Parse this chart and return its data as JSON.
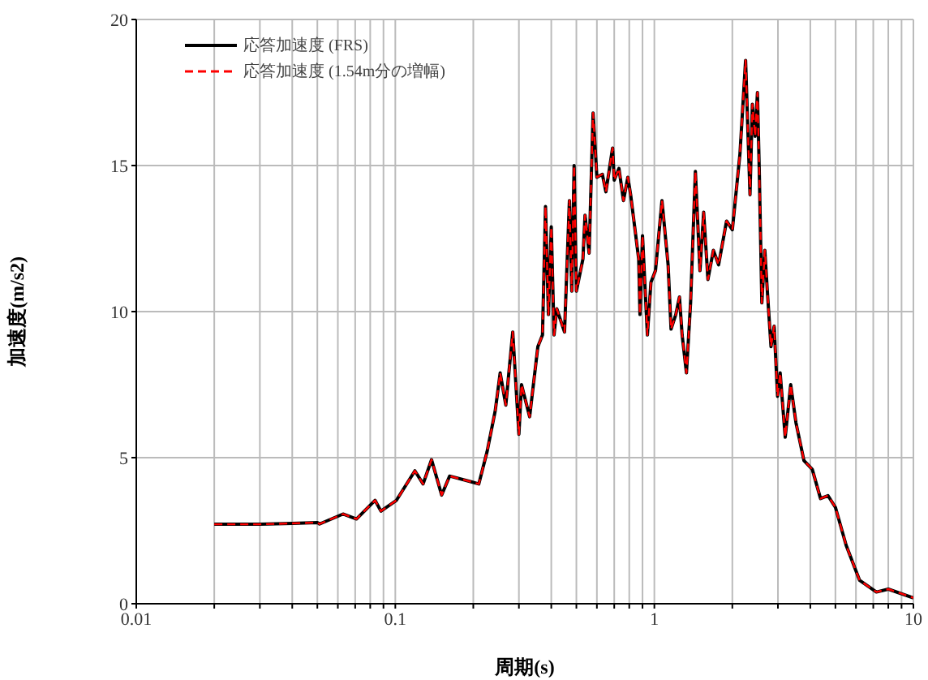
{
  "chart_data": {
    "type": "line",
    "xlabel": "周期(s)",
    "ylabel": "加速度(m/s2)",
    "x": [
      0.02,
      0.03,
      0.04,
      0.05,
      0.051,
      0.0628,
      0.0708,
      0.0835,
      0.088,
      0.101,
      0.119,
      0.128,
      0.138,
      0.151,
      0.162,
      0.195,
      0.21,
      0.226,
      0.243,
      0.254,
      0.267,
      0.284,
      0.3,
      0.307,
      0.33,
      0.355,
      0.37,
      0.38,
      0.39,
      0.4,
      0.41,
      0.42,
      0.45,
      0.47,
      0.48,
      0.49,
      0.5,
      0.53,
      0.54,
      0.56,
      0.58,
      0.6,
      0.63,
      0.65,
      0.69,
      0.7,
      0.73,
      0.76,
      0.79,
      0.81,
      0.87,
      0.88,
      0.9,
      0.94,
      0.97,
      1.01,
      1.07,
      1.13,
      1.16,
      1.21,
      1.25,
      1.28,
      1.33,
      1.38,
      1.44,
      1.5,
      1.55,
      1.61,
      1.69,
      1.77,
      1.9,
      2.0,
      2.14,
      2.25,
      2.34,
      2.39,
      2.45,
      2.5,
      2.54,
      2.6,
      2.67,
      2.73,
      2.82,
      2.9,
      2.99,
      3.06,
      3.2,
      3.36,
      3.52,
      3.78,
      4.07,
      4.38,
      4.68,
      5.0,
      5.5,
      6.2,
      7.2,
      8.0,
      10
    ],
    "series": [
      {
        "name": "応答加速度 (FRS)",
        "color": "#000000",
        "line_style": "solid",
        "values": [
          2.72,
          2.72,
          2.75,
          2.78,
          2.73,
          3.07,
          2.9,
          3.54,
          3.17,
          3.54,
          4.55,
          4.1,
          4.93,
          3.72,
          4.37,
          4.18,
          4.1,
          5.2,
          6.6,
          7.9,
          6.8,
          9.3,
          5.8,
          7.5,
          6.4,
          8.8,
          9.2,
          13.6,
          9.9,
          12.9,
          9.2,
          10.1,
          9.3,
          13.8,
          10.7,
          15.0,
          10.7,
          11.8,
          13.3,
          12.0,
          16.8,
          14.6,
          14.7,
          14.1,
          15.6,
          14.5,
          14.9,
          13.8,
          14.6,
          14.0,
          11.8,
          9.9,
          12.6,
          9.2,
          11.0,
          11.4,
          13.8,
          11.6,
          9.4,
          9.9,
          10.5,
          9.2,
          7.9,
          10.3,
          14.8,
          11.4,
          13.4,
          11.1,
          12.1,
          11.6,
          13.1,
          12.8,
          15.4,
          18.6,
          14.0,
          17.1,
          16.0,
          17.5,
          14.9,
          10.3,
          12.1,
          10.7,
          8.8,
          9.5,
          7.1,
          7.9,
          5.7,
          7.5,
          6.2,
          4.9,
          4.6,
          3.6,
          3.7,
          3.3,
          2.0,
          0.8,
          0.4,
          0.5,
          0.2
        ]
      },
      {
        "name": "応答加速度 (1.54m分の増幅)",
        "color": "#ff0000",
        "line_style": "dashed",
        "values": [
          2.72,
          2.72,
          2.75,
          2.78,
          2.73,
          3.07,
          2.9,
          3.54,
          3.17,
          3.54,
          4.55,
          4.1,
          4.93,
          3.72,
          4.37,
          4.18,
          4.1,
          5.2,
          6.6,
          7.9,
          6.8,
          9.3,
          5.8,
          7.5,
          6.4,
          8.8,
          9.2,
          13.6,
          9.9,
          12.9,
          9.2,
          10.1,
          9.3,
          13.8,
          10.7,
          15.0,
          10.7,
          11.8,
          13.3,
          12.0,
          16.8,
          14.6,
          14.7,
          14.1,
          15.6,
          14.5,
          14.9,
          13.8,
          14.6,
          14.0,
          11.8,
          9.9,
          12.6,
          9.2,
          11.0,
          11.4,
          13.8,
          11.6,
          9.4,
          9.9,
          10.5,
          9.2,
          7.9,
          10.3,
          14.8,
          11.4,
          13.4,
          11.1,
          12.1,
          11.6,
          13.1,
          12.8,
          15.4,
          18.6,
          14.0,
          17.1,
          16.0,
          17.5,
          14.9,
          10.3,
          12.1,
          10.7,
          8.8,
          9.5,
          7.1,
          7.9,
          5.7,
          7.5,
          6.2,
          4.9,
          4.6,
          3.6,
          3.7,
          3.3,
          2.0,
          0.8,
          0.4,
          0.5,
          0.2
        ]
      }
    ],
    "log": "x",
    "xlim": [
      0.01,
      10
    ],
    "xticks": [
      0.01,
      {
        "value": 0.02,
        "label": null
      },
      {
        "value": 0.03,
        "label": null
      },
      {
        "value": 0.04,
        "label": null
      },
      {
        "value": 0.05,
        "label": null
      },
      {
        "value": 0.06,
        "label": null
      },
      {
        "value": 0.07,
        "label": null
      },
      {
        "value": 0.08,
        "label": null
      },
      {
        "value": 0.09,
        "label": null
      },
      0.1,
      {
        "value": 0.2,
        "label": null
      },
      {
        "value": 0.3,
        "label": null
      },
      {
        "value": 0.4,
        "label": null
      },
      {
        "value": 0.5,
        "label": null
      },
      {
        "value": 0.6,
        "label": null
      },
      {
        "value": 0.7,
        "label": null
      },
      {
        "value": 0.8,
        "label": null
      },
      {
        "value": 0.9,
        "label": null
      },
      1,
      {
        "value": 2,
        "label": null
      },
      {
        "value": 3,
        "label": null
      },
      {
        "value": 4,
        "label": null
      },
      {
        "value": 5,
        "label": null
      },
      {
        "value": 6,
        "label": null
      },
      {
        "value": 7,
        "label": null
      },
      {
        "value": 8,
        "label": null
      },
      {
        "value": 9,
        "label": null
      },
      10
    ],
    "ylim": [
      0,
      20
    ],
    "yticks": [
      0,
      5,
      10,
      15,
      20
    ],
    "grid": true,
    "legend": "top left",
    "marker": "none"
  }
}
